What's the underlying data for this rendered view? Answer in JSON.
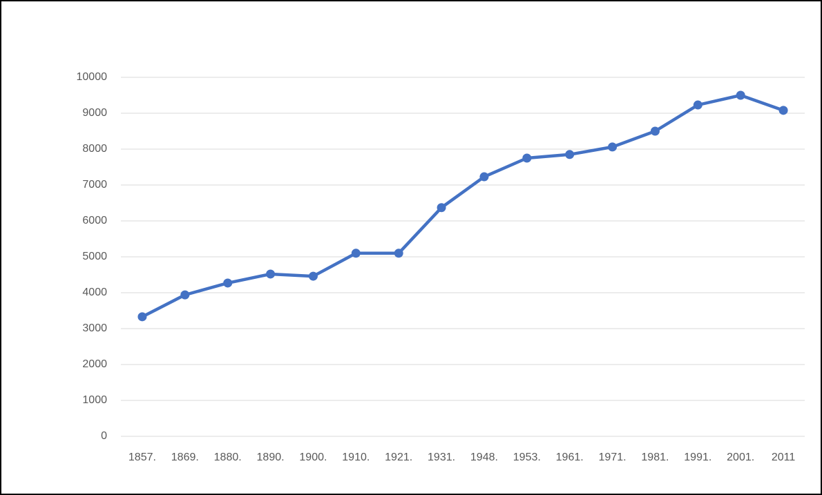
{
  "chart_data": {
    "type": "line",
    "categories": [
      "1857.",
      "1869.",
      "1880.",
      "1890.",
      "1900.",
      "1910.",
      "1921.",
      "1931.",
      "1948.",
      "1953.",
      "1961.",
      "1971.",
      "1981.",
      "1991.",
      "2001.",
      "2011"
    ],
    "values": [
      3330,
      3940,
      4270,
      4520,
      4460,
      5100,
      5100,
      6370,
      7230,
      7750,
      7850,
      8060,
      8500,
      9230,
      9500,
      9080
    ],
    "color": "#4472c4",
    "ylim": [
      0,
      10000
    ],
    "yticks": [
      0,
      1000,
      2000,
      3000,
      4000,
      5000,
      6000,
      7000,
      8000,
      9000,
      10000
    ],
    "grid": true,
    "markers": true
  }
}
